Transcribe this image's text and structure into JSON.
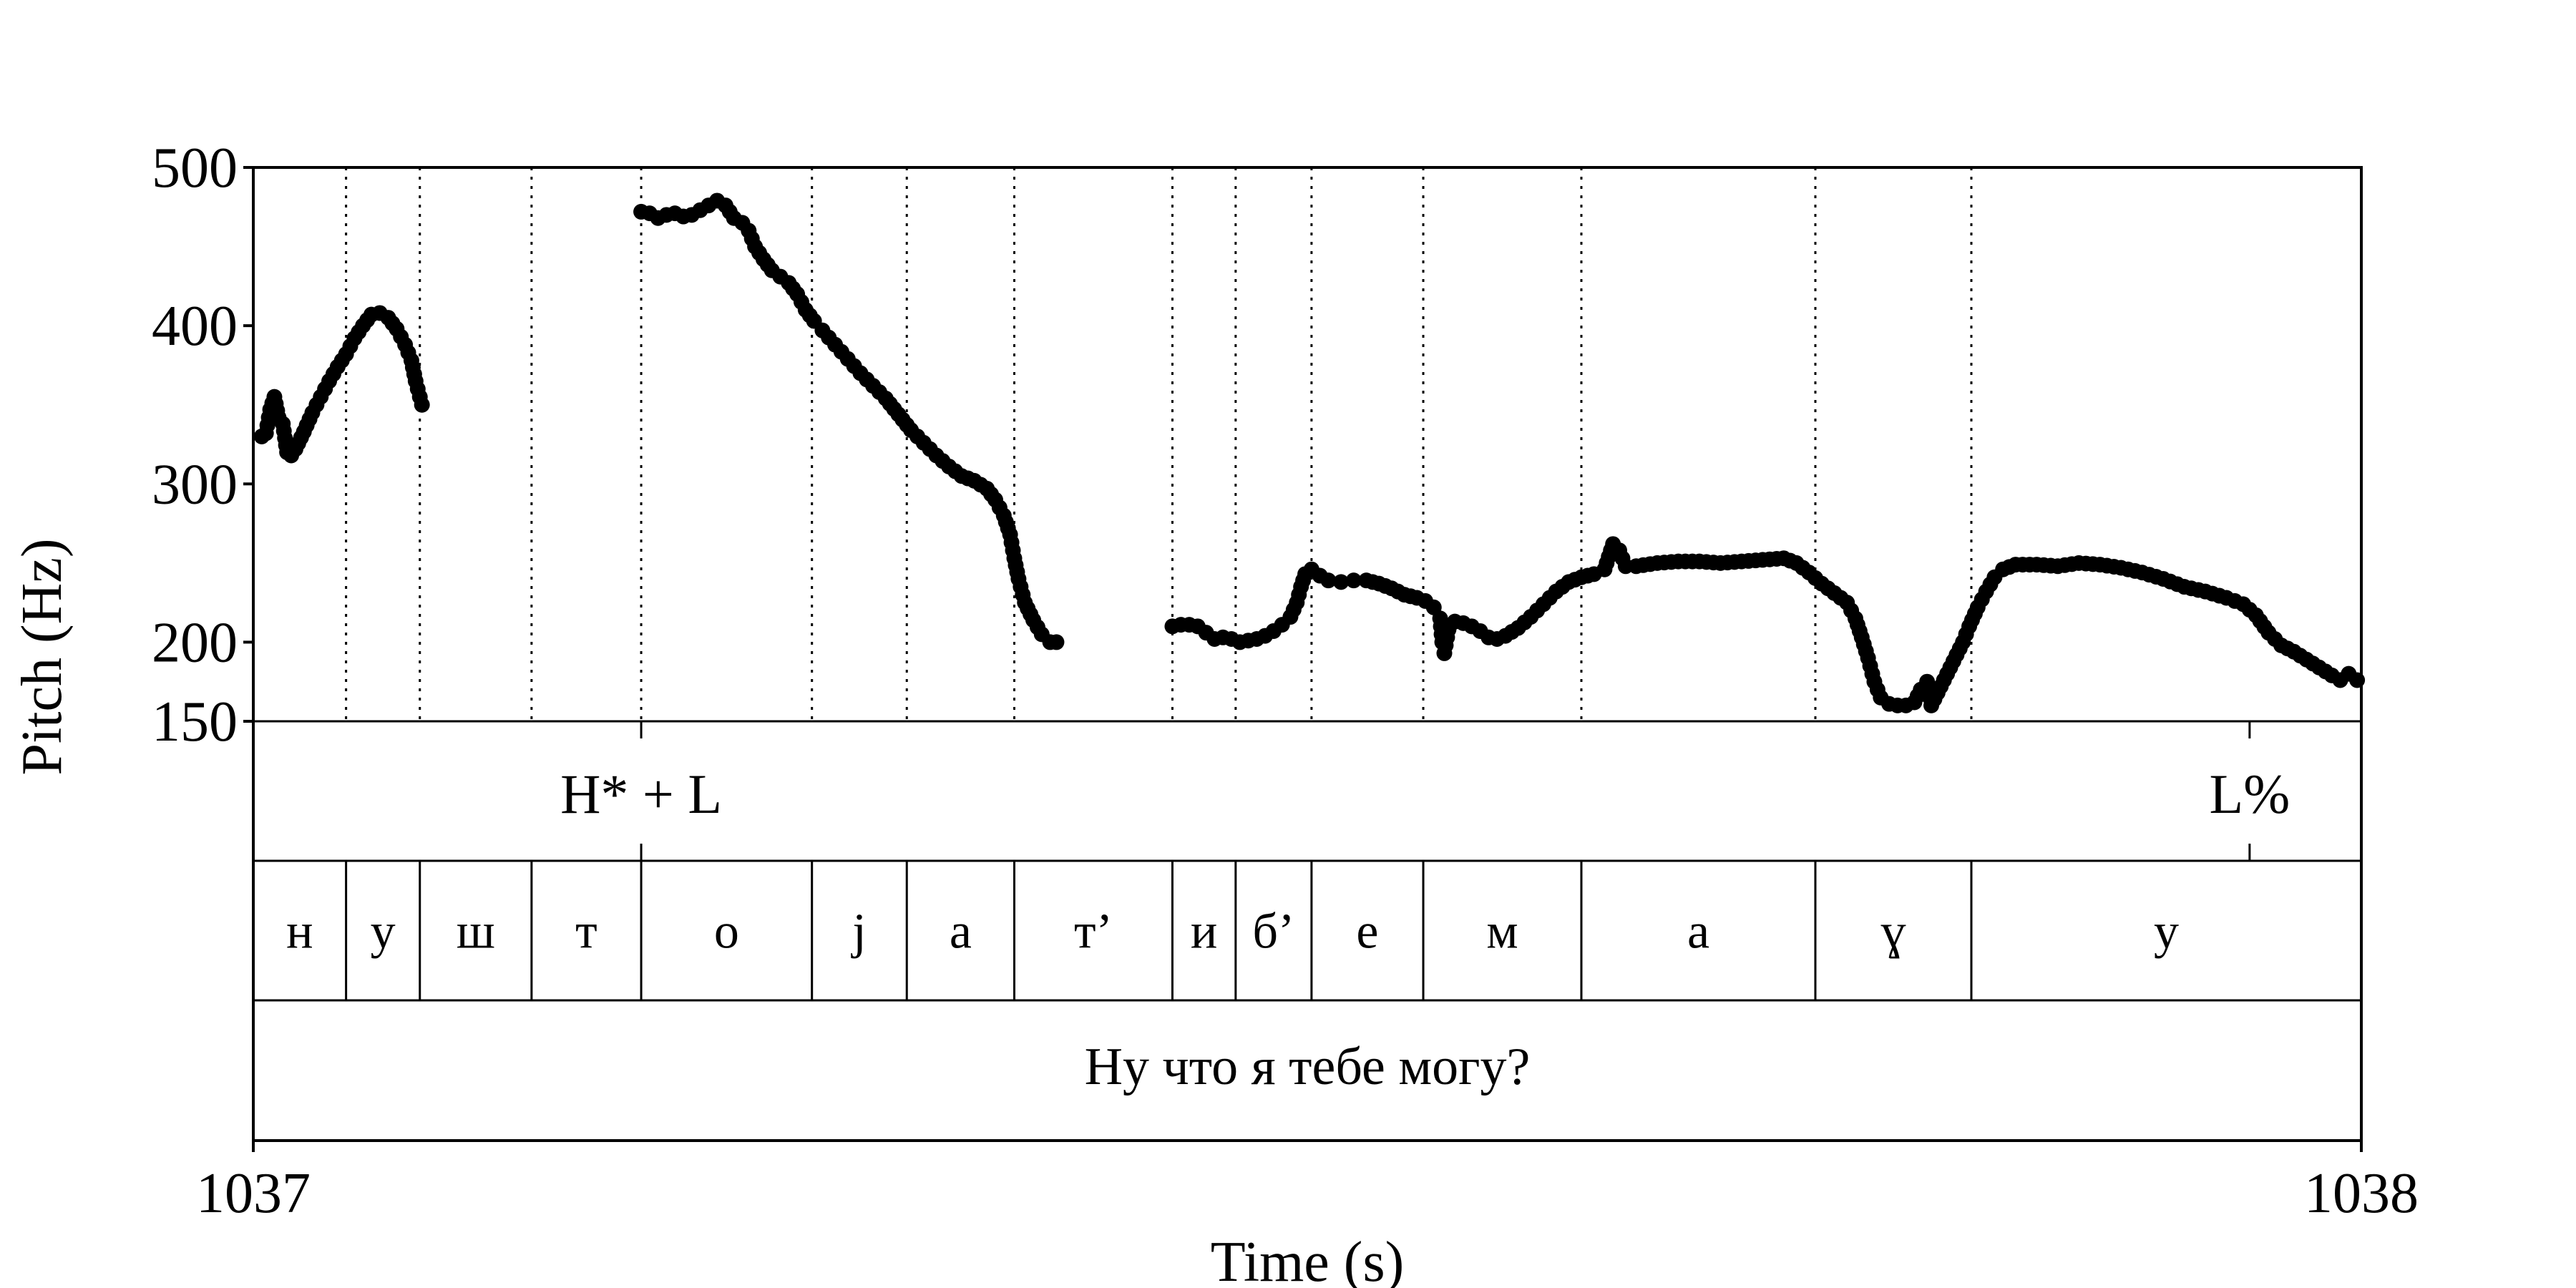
{
  "chart_data": {
    "type": "scatter",
    "title": "",
    "xlabel": "Time (s)",
    "ylabel": "Pitch (Hz)",
    "xlim": [
      1037,
      1038
    ],
    "ylim": [
      150,
      500
    ],
    "xticks": [
      "1037",
      "1038"
    ],
    "yticks": [
      "500",
      "400",
      "300",
      "200",
      "150"
    ],
    "ytick_values": [
      500,
      400,
      300,
      200,
      150
    ],
    "boundaries": [
      1037.044,
      1037.079,
      1037.132,
      1037.184,
      1037.265,
      1037.31,
      1037.361,
      1037.436,
      1037.466,
      1037.502,
      1037.555,
      1037.63,
      1037.741,
      1037.815
    ],
    "tones": [
      {
        "label": "H* + L",
        "time": 1037.184
      },
      {
        "label": "L%",
        "time": 1037.947
      }
    ],
    "segments": [
      {
        "label": "н",
        "start": 1037.0,
        "end": 1037.044
      },
      {
        "label": "у",
        "start": 1037.044,
        "end": 1037.079
      },
      {
        "label": "ш",
        "start": 1037.079,
        "end": 1037.132
      },
      {
        "label": "т",
        "start": 1037.132,
        "end": 1037.184
      },
      {
        "label": "о",
        "start": 1037.184,
        "end": 1037.265
      },
      {
        "label": "j",
        "start": 1037.265,
        "end": 1037.31
      },
      {
        "label": "а",
        "start": 1037.31,
        "end": 1037.361
      },
      {
        "label": "т’",
        "start": 1037.361,
        "end": 1037.436
      },
      {
        "label": "и",
        "start": 1037.436,
        "end": 1037.466
      },
      {
        "label": "б’",
        "start": 1037.466,
        "end": 1037.502
      },
      {
        "label": "е",
        "start": 1037.502,
        "end": 1037.555
      },
      {
        "label": "м",
        "start": 1037.555,
        "end": 1037.63
      },
      {
        "label": "а",
        "start": 1037.63,
        "end": 1037.741
      },
      {
        "label": "ɣ",
        "start": 1037.741,
        "end": 1037.815
      },
      {
        "label": "у",
        "start": 1037.815,
        "end": 1038.0
      }
    ],
    "sentence": "Ну что я тебе могу?",
    "series": [
      {
        "points": [
          [
            1037.004,
            330
          ],
          [
            1037.006,
            332
          ],
          [
            1037.008,
            347
          ],
          [
            1037.01,
            355
          ],
          [
            1037.012,
            342
          ],
          [
            1037.014,
            338
          ],
          [
            1037.016,
            320
          ],
          [
            1037.018,
            318
          ],
          [
            1037.02,
            322
          ],
          [
            1037.024,
            333
          ],
          [
            1037.028,
            345
          ],
          [
            1037.032,
            355
          ],
          [
            1037.036,
            365
          ],
          [
            1037.04,
            374
          ],
          [
            1037.044,
            382
          ],
          [
            1037.048,
            392
          ],
          [
            1037.052,
            400
          ],
          [
            1037.056,
            407
          ],
          [
            1037.06,
            408
          ],
          [
            1037.064,
            405
          ],
          [
            1037.068,
            398
          ],
          [
            1037.072,
            388
          ],
          [
            1037.075,
            378
          ],
          [
            1037.077,
            365
          ],
          [
            1037.079,
            355
          ],
          [
            1037.08,
            350
          ]
        ]
      },
      {
        "points": [
          [
            1037.184,
            472
          ],
          [
            1037.188,
            471
          ],
          [
            1037.192,
            468
          ],
          [
            1037.196,
            470
          ],
          [
            1037.2,
            471
          ],
          [
            1037.204,
            469
          ],
          [
            1037.208,
            470
          ],
          [
            1037.212,
            473
          ],
          [
            1037.216,
            476
          ],
          [
            1037.22,
            479
          ],
          [
            1037.224,
            476
          ],
          [
            1037.228,
            468
          ],
          [
            1037.232,
            465
          ],
          [
            1037.235,
            460
          ],
          [
            1037.238,
            450
          ],
          [
            1037.242,
            442
          ],
          [
            1037.246,
            435
          ],
          [
            1037.25,
            431
          ],
          [
            1037.254,
            427
          ],
          [
            1037.258,
            420
          ],
          [
            1037.262,
            410
          ],
          [
            1037.266,
            403
          ],
          [
            1037.27,
            397
          ],
          [
            1037.276,
            388
          ],
          [
            1037.282,
            379
          ],
          [
            1037.288,
            370
          ],
          [
            1037.294,
            362
          ],
          [
            1037.3,
            354
          ],
          [
            1037.306,
            344
          ],
          [
            1037.312,
            334
          ],
          [
            1037.318,
            326
          ],
          [
            1037.324,
            318
          ],
          [
            1037.33,
            311
          ],
          [
            1037.336,
            305
          ],
          [
            1037.342,
            302
          ],
          [
            1037.348,
            297
          ],
          [
            1037.352,
            290
          ],
          [
            1037.356,
            280
          ],
          [
            1037.359,
            268
          ],
          [
            1037.361,
            253
          ],
          [
            1037.363,
            240
          ],
          [
            1037.366,
            225
          ],
          [
            1037.37,
            214
          ],
          [
            1037.374,
            205
          ],
          [
            1037.378,
            200
          ],
          [
            1037.381,
            200
          ]
        ]
      },
      {
        "points": [
          [
            1037.436,
            210
          ],
          [
            1037.44,
            211
          ],
          [
            1037.444,
            211
          ],
          [
            1037.448,
            210
          ],
          [
            1037.452,
            206
          ],
          [
            1037.456,
            202
          ],
          [
            1037.46,
            203
          ],
          [
            1037.464,
            202
          ],
          [
            1037.468,
            200
          ],
          [
            1037.472,
            201
          ],
          [
            1037.476,
            202
          ],
          [
            1037.48,
            204
          ],
          [
            1037.484,
            207
          ],
          [
            1037.488,
            211
          ],
          [
            1037.492,
            216
          ],
          [
            1037.495,
            225
          ],
          [
            1037.497,
            235
          ],
          [
            1037.499,
            243
          ],
          [
            1037.502,
            246
          ],
          [
            1037.506,
            242
          ],
          [
            1037.51,
            239
          ],
          [
            1037.516,
            238
          ],
          [
            1037.522,
            239
          ],
          [
            1037.528,
            239
          ],
          [
            1037.534,
            237
          ],
          [
            1037.54,
            234
          ],
          [
            1037.546,
            230
          ],
          [
            1037.552,
            228
          ],
          [
            1037.556,
            226
          ],
          [
            1037.56,
            222
          ],
          [
            1037.563,
            215
          ],
          [
            1037.564,
            200
          ],
          [
            1037.565,
            193
          ],
          [
            1037.567,
            208
          ],
          [
            1037.57,
            213
          ],
          [
            1037.574,
            212
          ],
          [
            1037.578,
            210
          ],
          [
            1037.582,
            207
          ],
          [
            1037.586,
            203
          ],
          [
            1037.59,
            202
          ],
          [
            1037.594,
            204
          ],
          [
            1037.6,
            209
          ],
          [
            1037.606,
            216
          ],
          [
            1037.612,
            224
          ],
          [
            1037.618,
            232
          ],
          [
            1037.624,
            238
          ],
          [
            1037.63,
            241
          ],
          [
            1037.636,
            243
          ],
          [
            1037.641,
            246
          ],
          [
            1037.643,
            254
          ],
          [
            1037.645,
            262
          ],
          [
            1037.648,
            258
          ],
          [
            1037.651,
            248
          ],
          [
            1037.656,
            248
          ],
          [
            1037.666,
            250
          ],
          [
            1037.676,
            251
          ],
          [
            1037.686,
            251
          ],
          [
            1037.696,
            250
          ],
          [
            1037.706,
            251
          ],
          [
            1037.716,
            252
          ],
          [
            1037.726,
            253
          ],
          [
            1037.732,
            250
          ],
          [
            1037.738,
            244
          ],
          [
            1037.744,
            237
          ],
          [
            1037.75,
            231
          ],
          [
            1037.756,
            225
          ],
          [
            1037.76,
            215
          ],
          [
            1037.763,
            203
          ],
          [
            1037.766,
            190
          ],
          [
            1037.769,
            175
          ],
          [
            1037.772,
            165
          ],
          [
            1037.776,
            161
          ],
          [
            1037.78,
            160
          ],
          [
            1037.784,
            160
          ],
          [
            1037.788,
            162
          ],
          [
            1037.791,
            170
          ],
          [
            1037.794,
            175
          ],
          [
            1037.796,
            160
          ],
          [
            1037.799,
            168
          ],
          [
            1037.802,
            176
          ],
          [
            1037.805,
            184
          ],
          [
            1037.808,
            192
          ],
          [
            1037.811,
            200
          ],
          [
            1037.814,
            210
          ],
          [
            1037.818,
            222
          ],
          [
            1037.822,
            232
          ],
          [
            1037.826,
            241
          ],
          [
            1037.83,
            246
          ],
          [
            1037.836,
            249
          ],
          [
            1037.846,
            249
          ],
          [
            1037.856,
            248
          ],
          [
            1037.866,
            250
          ],
          [
            1037.876,
            249
          ],
          [
            1037.886,
            247
          ],
          [
            1037.896,
            244
          ],
          [
            1037.906,
            240
          ],
          [
            1037.916,
            235
          ],
          [
            1037.926,
            232
          ],
          [
            1037.936,
            228
          ],
          [
            1037.944,
            224
          ],
          [
            1037.95,
            217
          ],
          [
            1037.956,
            206
          ],
          [
            1037.962,
            198
          ],
          [
            1037.968,
            194
          ],
          [
            1037.974,
            189
          ],
          [
            1037.98,
            184
          ],
          [
            1037.986,
            179
          ],
          [
            1037.99,
            176
          ],
          [
            1037.994,
            180
          ],
          [
            1037.998,
            176
          ]
        ]
      }
    ]
  },
  "colors": {
    "ink": "#000000",
    "background": "#ffffff"
  }
}
